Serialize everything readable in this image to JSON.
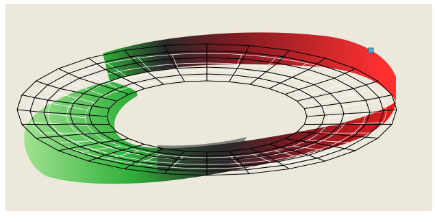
{
  "viewport": {
    "background": "#ece9dc",
    "frame_color": "#ffffff"
  },
  "surface": {
    "description_icon": "colored-mesh-ring",
    "colors": {
      "green_light": "#9ee08e",
      "green": "#2fb03a",
      "dark": "#2a2a2a",
      "maroon": "#7a1a22",
      "red": "#e81c1c",
      "red_light": "#ff4a4a"
    },
    "mesh_line_color": "#000000",
    "surface_grid_color": "#ffffff"
  },
  "handle": {
    "icon": "selection-handle-icon",
    "color": "#5aa9c8"
  }
}
